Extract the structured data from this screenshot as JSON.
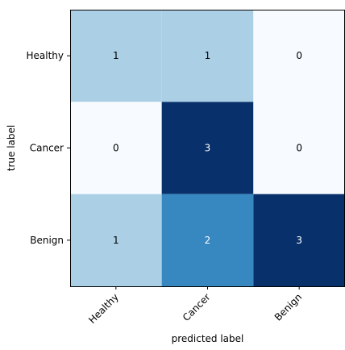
{
  "chart_data": {
    "type": "heatmap",
    "title": "",
    "xlabel": "predicted label",
    "ylabel": "true label",
    "x_categories": [
      "Healthy",
      "Cancer",
      "Benign"
    ],
    "y_categories": [
      "Healthy",
      "Cancer",
      "Benign"
    ],
    "matrix": [
      [
        1,
        1,
        0
      ],
      [
        0,
        3,
        0
      ],
      [
        1,
        2,
        3
      ]
    ],
    "value_range": [
      0,
      3
    ],
    "colormap": "Blues",
    "colors": {
      "low": "#f7fbff",
      "mid_low": "#abd0e6",
      "mid_high": "#3787c0",
      "high": "#08306b",
      "text_dark": "#000000",
      "text_light": "#ffffff"
    },
    "grid": false
  }
}
